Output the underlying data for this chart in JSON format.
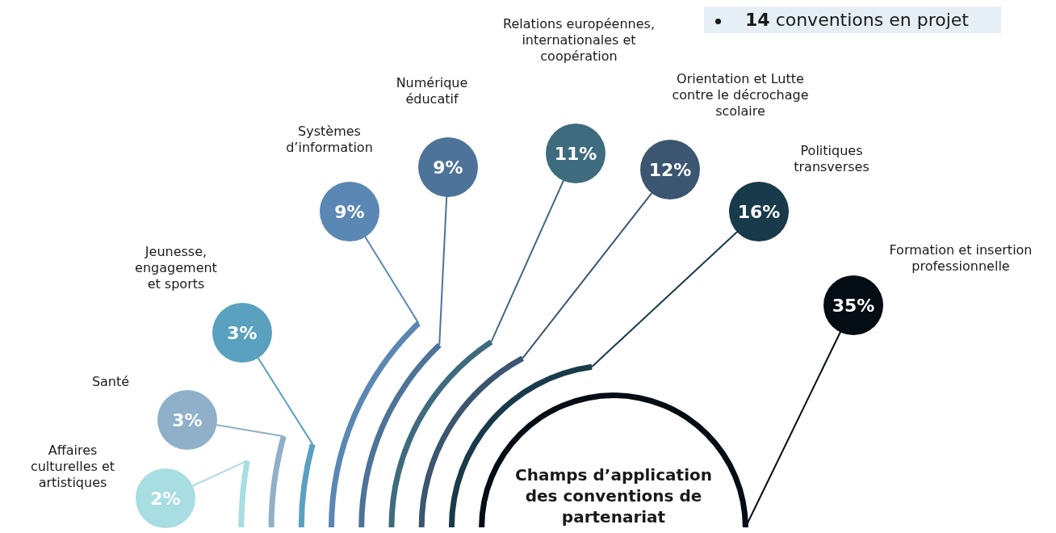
{
  "chart_data": {
    "type": "other",
    "title": "Champs d’application des conventions de partenariat",
    "categories": [
      "Affaires culturelles et artistiques",
      "Santé",
      "Jeunesse, engagement et sports",
      "Systèmes d’information",
      "Numérique éducatif",
      "Relations européennes, internationales et coopération",
      "Orientation et Lutte contre le décrochage scolaire",
      "Politiques transverses",
      "Formation et insertion professionnelle"
    ],
    "values": [
      2,
      3,
      3,
      9,
      9,
      11,
      12,
      16,
      35
    ],
    "value_labels": [
      "2%",
      "3%",
      "3%",
      "9%",
      "9%",
      "11%",
      "12%",
      "16%",
      "35%"
    ],
    "colors": [
      "#a8dde2",
      "#8fb0c8",
      "#5aa0bf",
      "#5b87b4",
      "#4d7399",
      "#3f6b7e",
      "#3c5570",
      "#183a4a",
      "#050d14"
    ],
    "annotations": [
      "14 conventions en projet"
    ]
  }
}
